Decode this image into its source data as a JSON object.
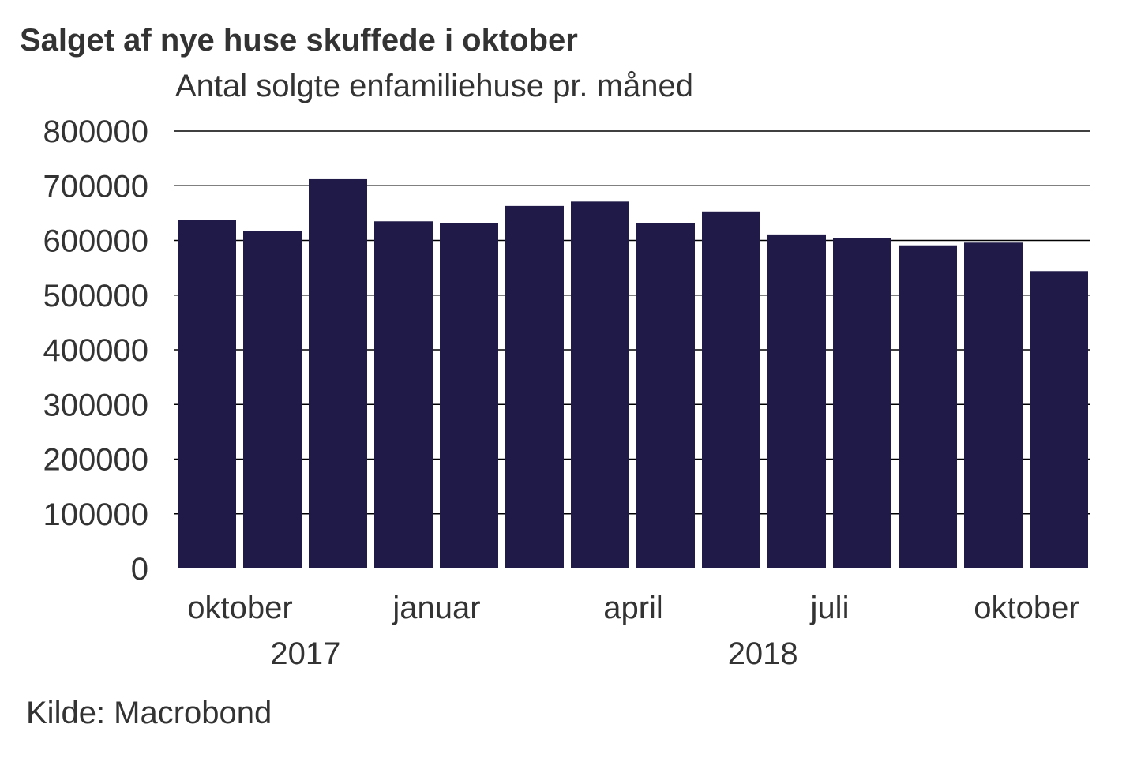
{
  "chart_data": {
    "type": "bar",
    "title": "Salget af nye huse skuffede i oktober",
    "subtitle": "Antal solgte enfamiliehuse pr. måned",
    "source": "Kilde: Macrobond",
    "categories": [
      "2017-09",
      "2017-10",
      "2017-11",
      "2017-12",
      "2018-01",
      "2018-02",
      "2018-03",
      "2018-04",
      "2018-05",
      "2018-06",
      "2018-07",
      "2018-08",
      "2018-09",
      "2018-10"
    ],
    "values": [
      637000,
      618000,
      712000,
      635000,
      632000,
      663000,
      671000,
      632000,
      653000,
      611000,
      605000,
      591000,
      596000,
      544000
    ],
    "ylim": [
      0,
      800000
    ],
    "yticks": [
      "0",
      "100000",
      "200000",
      "300000",
      "400000",
      "500000",
      "600000",
      "700000",
      "800000"
    ],
    "xtick_labels": [
      {
        "label": "oktober",
        "month_index": 1
      },
      {
        "label": "januar",
        "month_index": 4
      },
      {
        "label": "april",
        "month_index": 7
      },
      {
        "label": "juli",
        "month_index": 10
      },
      {
        "label": "oktober",
        "month_index": 13
      }
    ],
    "year_labels": [
      {
        "label": "2017",
        "month_index": 1.95
      },
      {
        "label": "2018",
        "month_index": 8.93
      }
    ],
    "grid": true,
    "bar_color": "#1f1a48",
    "xlabel": "",
    "ylabel": ""
  }
}
